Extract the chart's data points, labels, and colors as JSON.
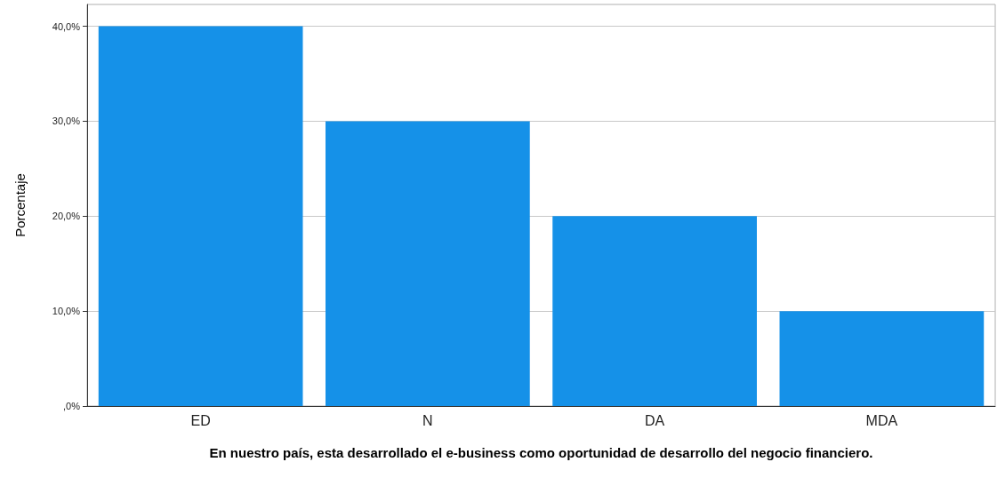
{
  "chart_data": {
    "type": "bar",
    "categories": [
      "ED",
      "N",
      "DA",
      "MDA"
    ],
    "values": [
      40,
      30,
      20,
      10
    ],
    "color": "#1591e8",
    "xlabel": "En nuestro país, esta desarrollado el e-business como oportunidad de desarrollo del negocio financiero.",
    "ylabel": "Porcentaje",
    "ylim": [
      0,
      42.3
    ],
    "yticks": [
      {
        "value": 0,
        "label": ",0%"
      },
      {
        "value": 10,
        "label": "10,0%"
      },
      {
        "value": 20,
        "label": "20,0%"
      },
      {
        "value": 30,
        "label": "30,0%"
      },
      {
        "value": 40,
        "label": "40,0%"
      }
    ],
    "grid": "y"
  }
}
